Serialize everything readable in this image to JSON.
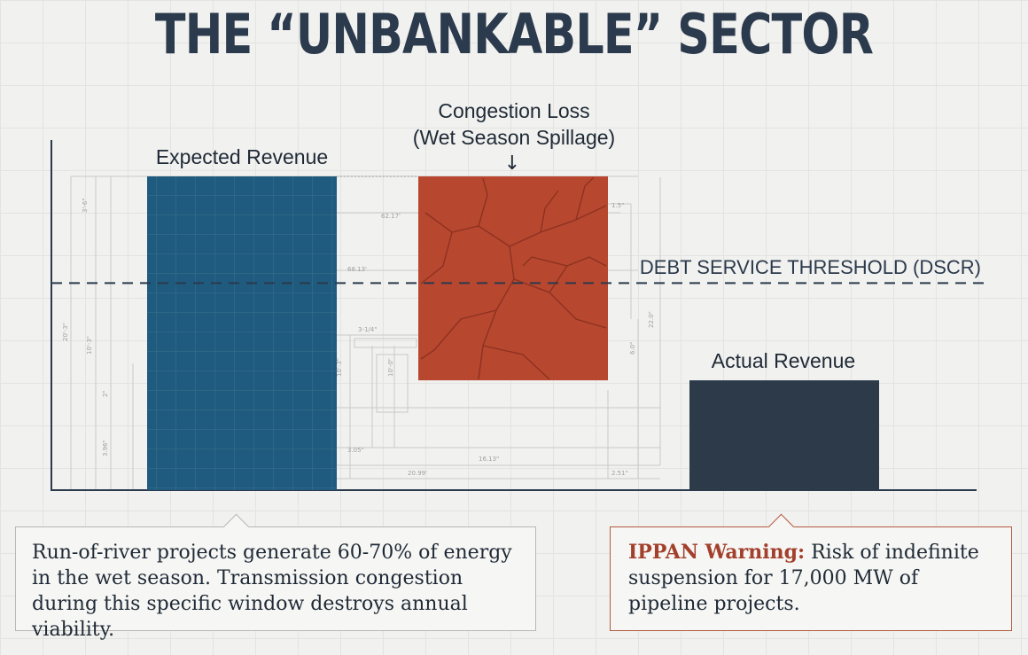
{
  "page": {
    "title": "THE “UNBANKABLE” SECTOR"
  },
  "chart_data": {
    "type": "bar",
    "categories": [
      "Expected Revenue",
      "Congestion Loss",
      "Actual Revenue"
    ],
    "values": [
      100,
      65,
      35
    ],
    "floating_bar": {
      "category": "Congestion Loss",
      "from": 35,
      "to": 100
    },
    "threshold": {
      "label": "DEBT SERVICE THRESHOLD (DSCR)",
      "value": 66
    },
    "annotations": {
      "expected_label": "Expected Revenue",
      "loss_label_line1": "Congestion Loss",
      "loss_label_line2": "(Wet Season Spillage)",
      "loss_arrow": "↓",
      "actual_label": "Actual Revenue"
    },
    "colors": {
      "expected": "#1f5b7e",
      "loss": "#b8472f",
      "actual": "#2c3a4a",
      "threshold": "#2b3a4c",
      "axis": "#2b3a4c"
    },
    "ylim": [
      0,
      100
    ],
    "grid": true
  },
  "blueprint_dims": [
    "3'-6\"",
    "62.17'",
    "68.13'",
    "3-1/4\"",
    "20'-3\"",
    "10'-3\"",
    "10'-3\"",
    "10'-0\"",
    "3.05\"",
    "20.99'",
    "16.13\"",
    "2.51\"",
    "22.0\"",
    "6.0\"",
    "1.5\"",
    "2\"",
    "3.96\""
  ],
  "notes": {
    "left_text": "Run-of-river projects generate 60-70% of energy in the wet season. Transmission congestion during this specific window destroys annual viability.",
    "right_label": "IPPAN Warning:",
    "right_text": " Risk of indefinite suspension for 17,000 MW of pipeline projects."
  }
}
